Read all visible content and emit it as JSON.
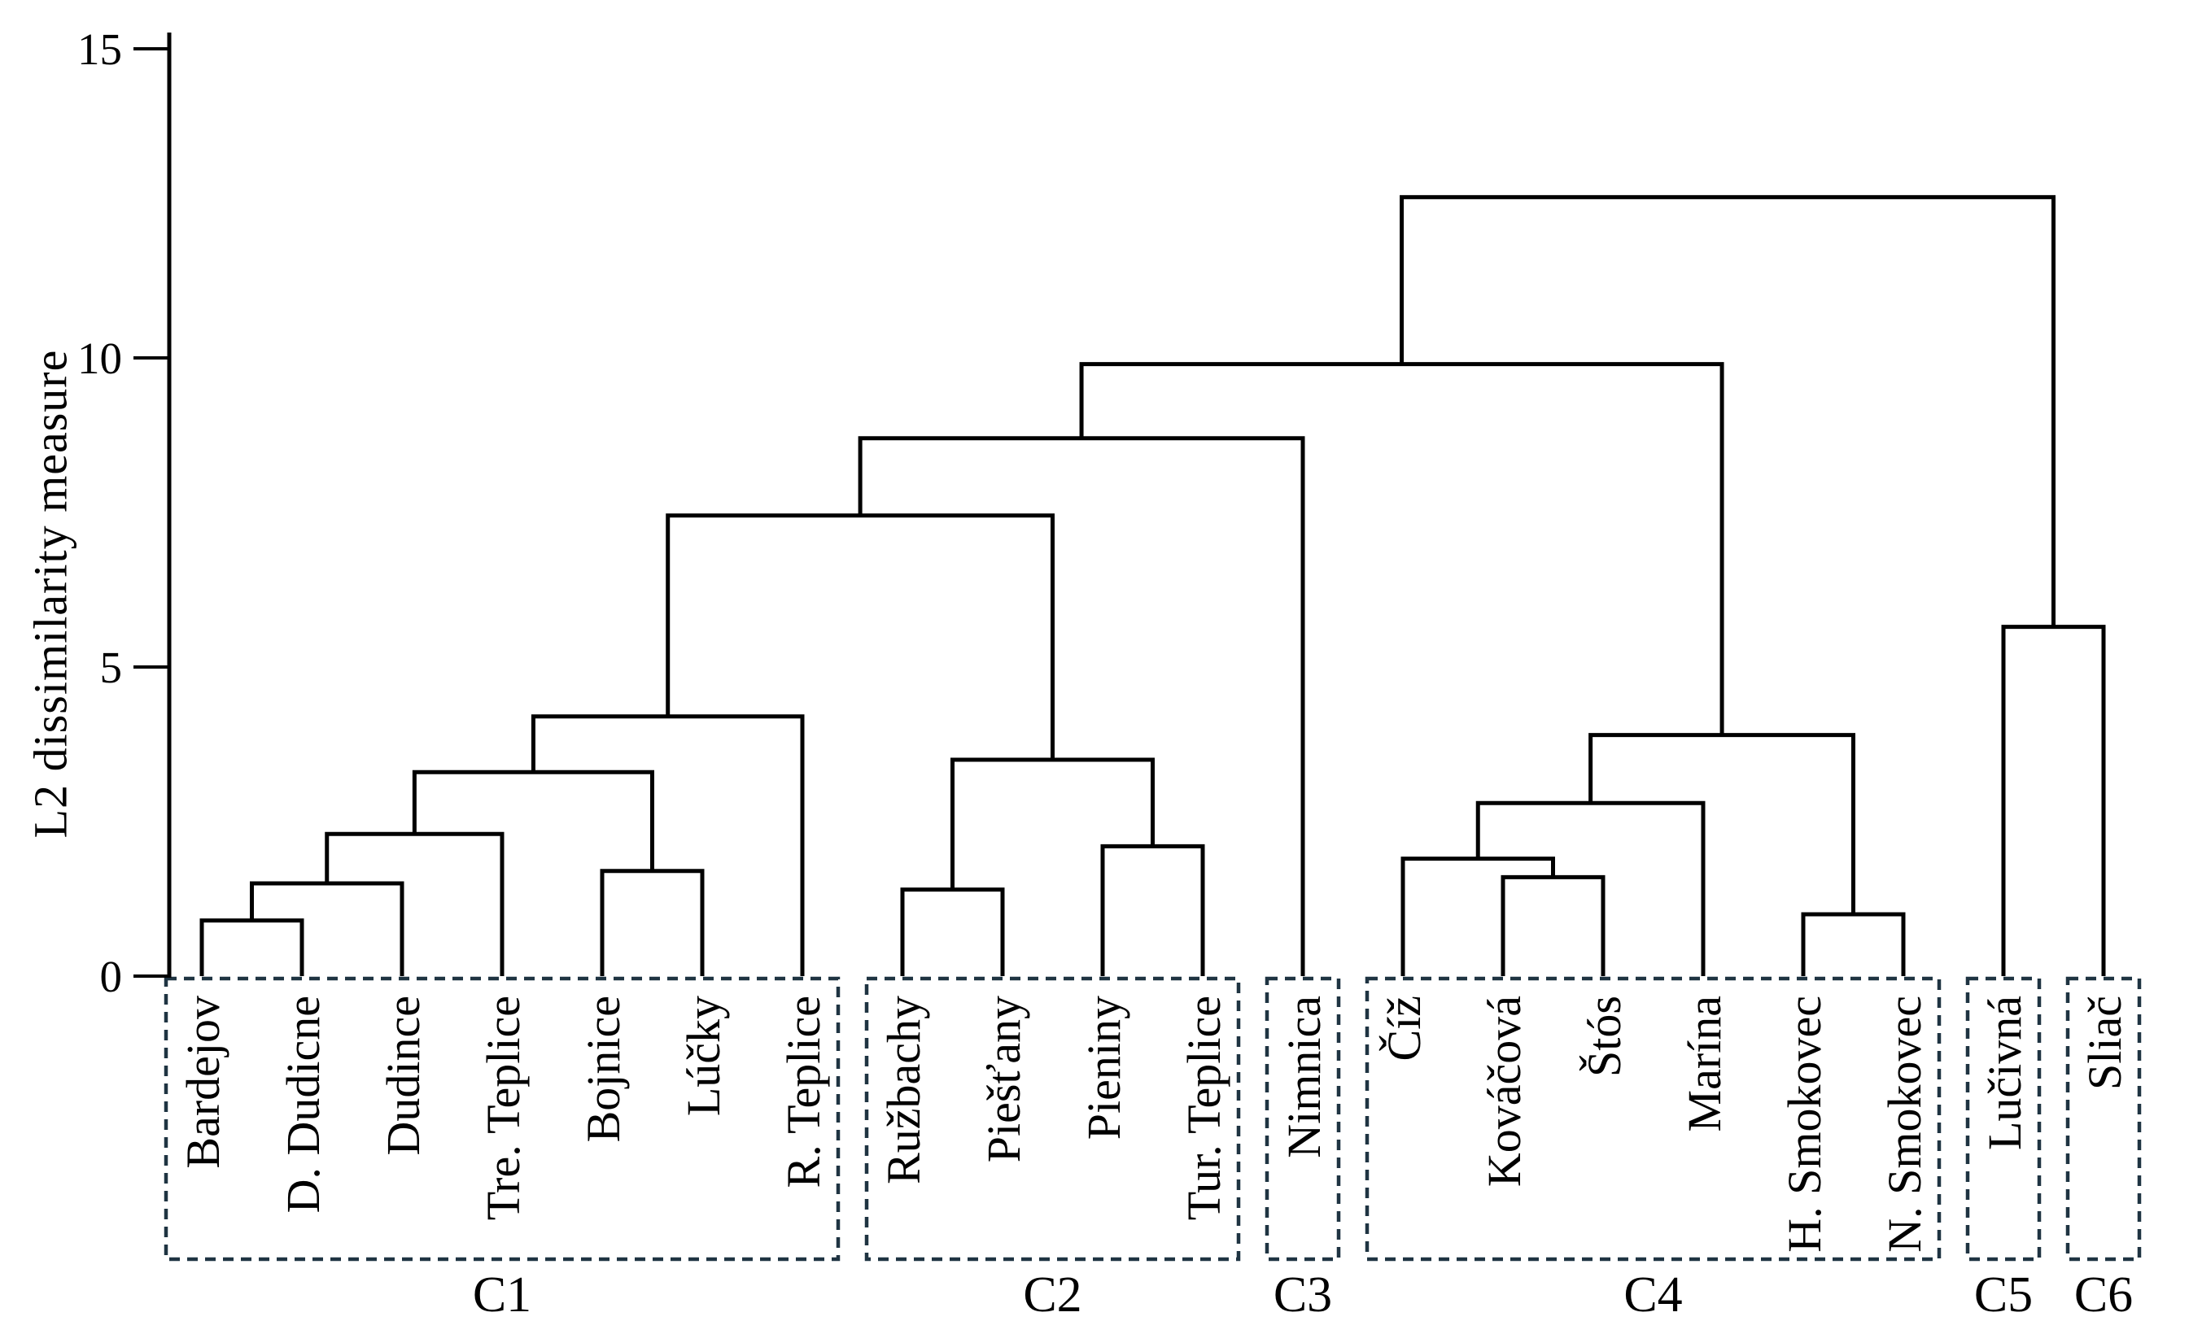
{
  "figure": {
    "background": "#ffffff",
    "line_color": "#000000",
    "box_color": "#1f3442",
    "text_color": "#000000"
  },
  "chart_data": {
    "type": "dendrogram",
    "title": "",
    "xlabel": "",
    "ylabel": "L2 dissimilarity measure",
    "yticks": [
      0,
      5,
      10,
      15
    ],
    "ytick_labels": [
      "0",
      "5",
      "10",
      "15"
    ],
    "ylim": [
      0,
      15.5
    ],
    "grid": false,
    "legend": "none",
    "orientation": "vertical",
    "leaves": [
      "Bardejov",
      "D. Dudicne",
      "Dudince",
      "Tre. Teplice",
      "Bojnice",
      "Lúčky",
      "R. Teplice",
      "Ružbachy",
      "Piešťany",
      "Pieniny",
      "Tur. Teplice",
      "Nimnica",
      "Číž",
      "Kováčová",
      "Štós",
      "Marína",
      "H. Smokovec",
      "N. Smokovec",
      "Lučivná",
      "Sliač"
    ],
    "merges": [
      {
        "left": "Bardejov",
        "right": "D. Dudicne",
        "height": 0.9
      },
      {
        "left": "#0",
        "right": "Dudince",
        "height": 1.5
      },
      {
        "left": "#1",
        "right": "Tre. Teplice",
        "height": 2.3
      },
      {
        "left": "Bojnice",
        "right": "Lúčky",
        "height": 1.7
      },
      {
        "left": "#2",
        "right": "#3",
        "height": 3.3
      },
      {
        "left": "#4",
        "right": "R. Teplice",
        "height": 4.2
      },
      {
        "left": "Ružbachy",
        "right": "Piešťany",
        "height": 1.4
      },
      {
        "left": "Pieniny",
        "right": "Tur. Teplice",
        "height": 2.1
      },
      {
        "left": "#6",
        "right": "#7",
        "height": 3.5
      },
      {
        "left": "#5",
        "right": "#8",
        "height": 7.45
      },
      {
        "left": "#9",
        "right": "Nimnica",
        "height": 8.7
      },
      {
        "left": "Kováčová",
        "right": "Štós",
        "height": 1.6
      },
      {
        "left": "Číž",
        "right": "#11",
        "height": 1.9
      },
      {
        "left": "#12",
        "right": "Marína",
        "height": 2.8
      },
      {
        "left": "H. Smokovec",
        "right": "N. Smokovec",
        "height": 1.0
      },
      {
        "left": "#13",
        "right": "#14",
        "height": 3.9
      },
      {
        "left": "#10",
        "right": "#15",
        "height": 9.9
      },
      {
        "left": "Lučivná",
        "right": "Sliač",
        "height": 5.65
      },
      {
        "left": "#16",
        "right": "#17",
        "height": 12.6
      }
    ],
    "clusters": [
      {
        "label": "C1",
        "from": 0,
        "to": 6
      },
      {
        "label": "C2",
        "from": 7,
        "to": 10
      },
      {
        "label": "C3",
        "from": 11,
        "to": 11
      },
      {
        "label": "C4",
        "from": 12,
        "to": 17
      },
      {
        "label": "C5",
        "from": 18,
        "to": 18
      },
      {
        "label": "C6",
        "from": 19,
        "to": 19
      }
    ]
  }
}
